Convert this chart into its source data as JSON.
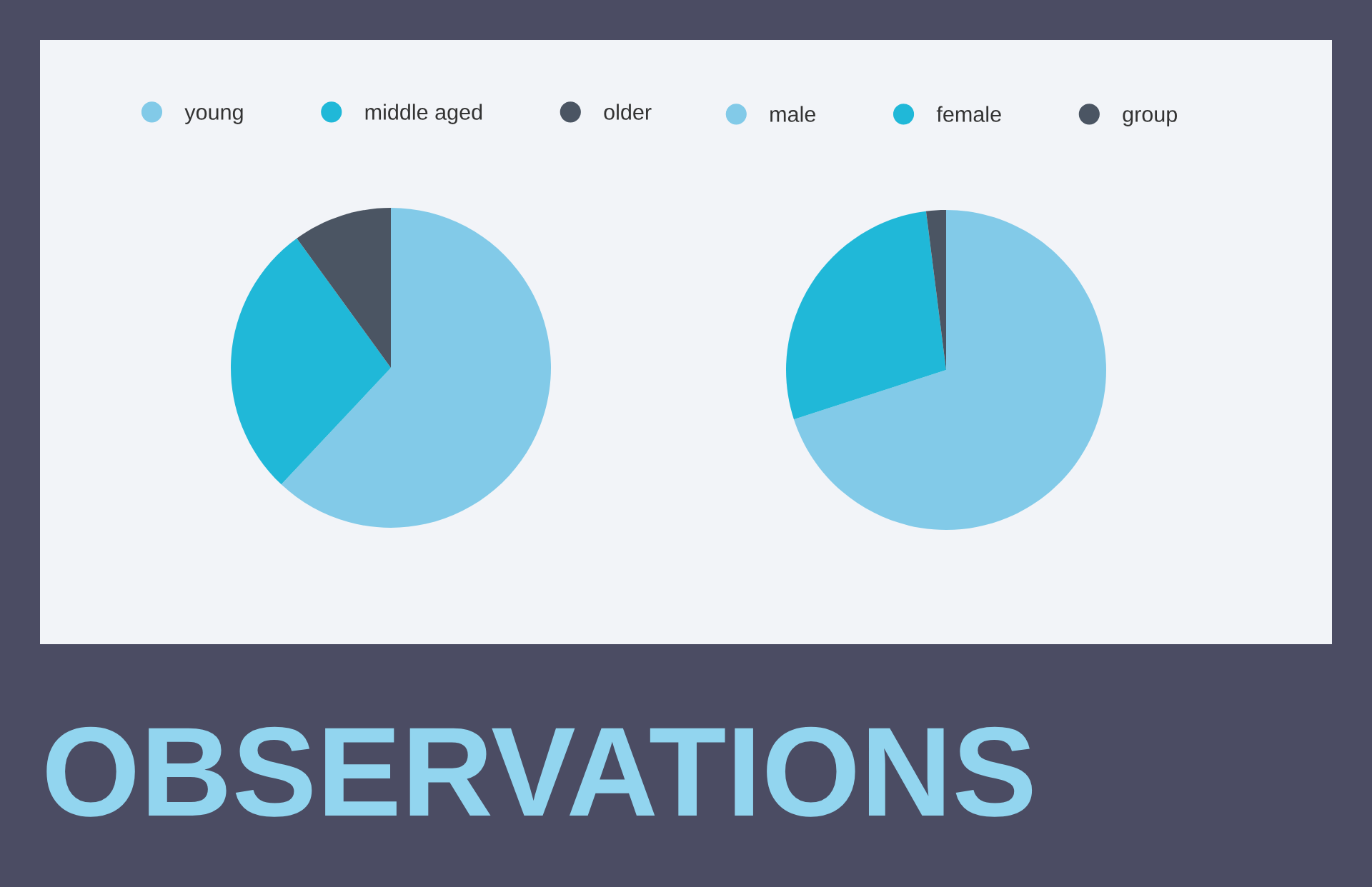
{
  "chart_data": [
    {
      "type": "pie",
      "title": "OBSERVATIONS",
      "categories": [
        "young",
        "middle aged",
        "older"
      ],
      "values": [
        62,
        28,
        10
      ],
      "colors": [
        "#82cae8",
        "#20b8d8",
        "#4b5563"
      ],
      "legend": "top"
    },
    {
      "type": "pie",
      "categories": [
        "male",
        "female",
        "group"
      ],
      "values": [
        70,
        28,
        2
      ],
      "colors": [
        "#82cae8",
        "#20b8d8",
        "#4b5563"
      ],
      "legend": "top"
    }
  ]
}
